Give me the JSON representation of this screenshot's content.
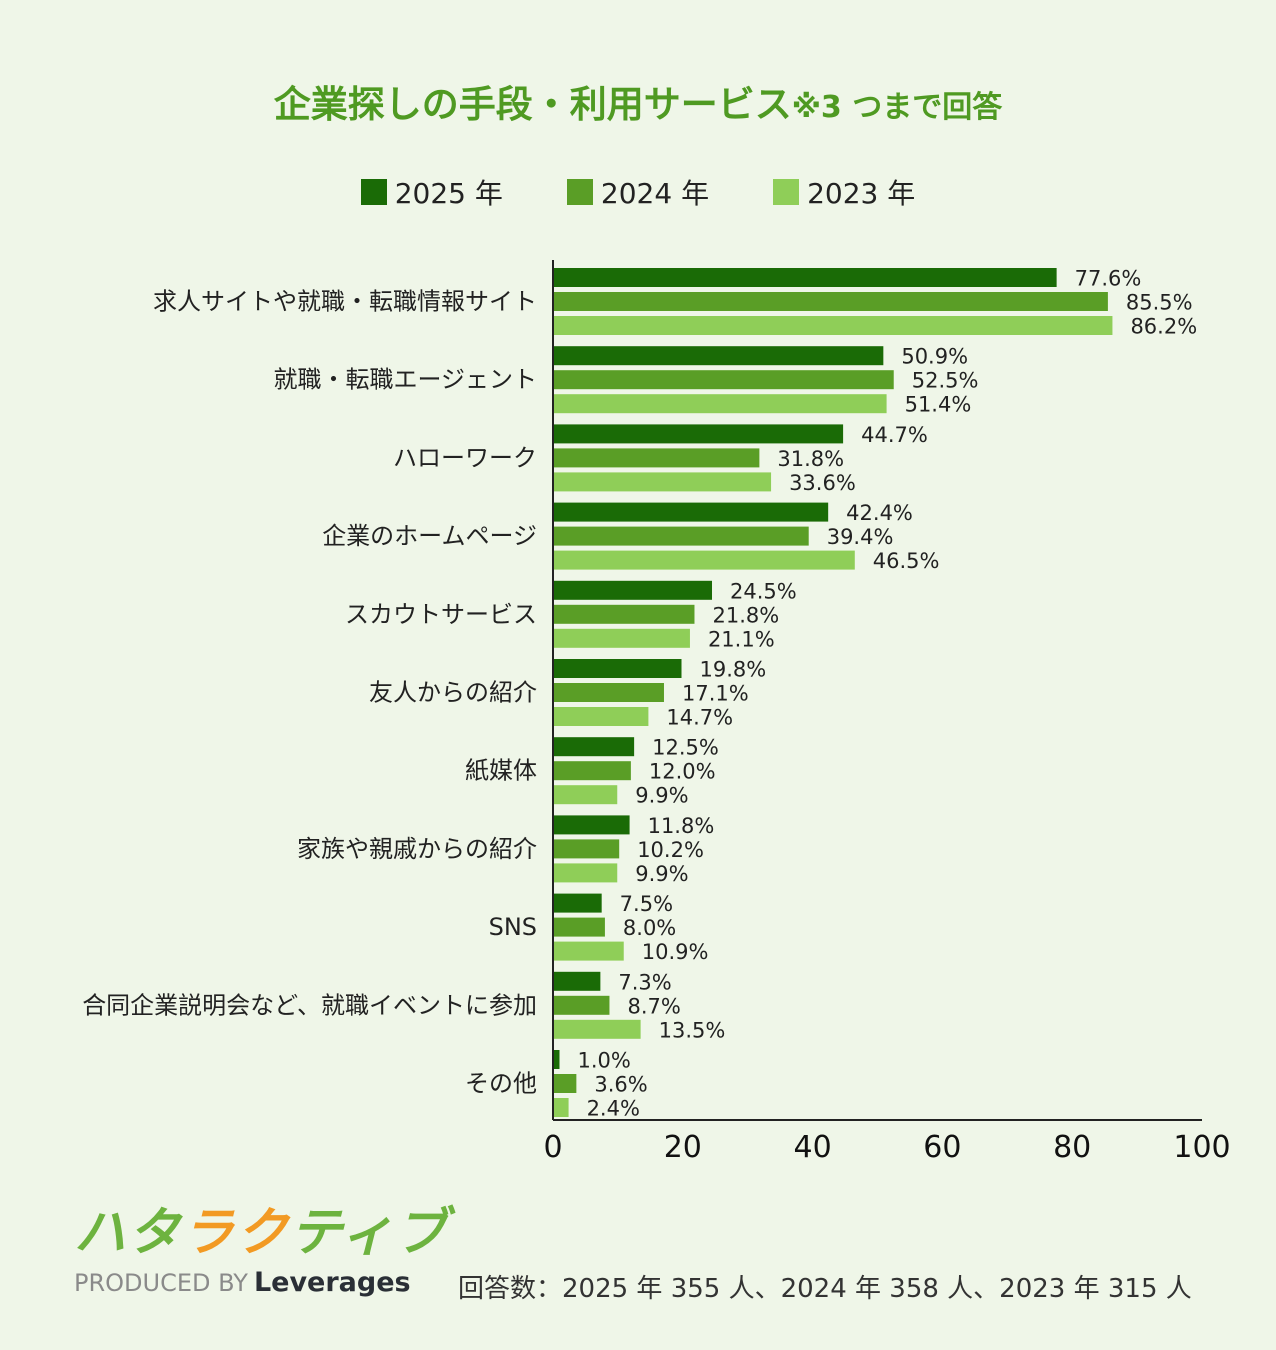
{
  "chart_data": {
    "type": "bar",
    "orientation": "horizontal",
    "title": "企業探しの手段・利用サービス",
    "title_note": "※3 つまで回答",
    "categories": [
      "求人サイトや就職・転職情報サイト",
      "就職・転職エージェント",
      "ハローワーク",
      "企業のホームページ",
      "スカウトサービス",
      "友人からの紹介",
      "紙媒体",
      "家族や親戚からの紹介",
      "SNS",
      "合同企業説明会など、就職イベントに参加",
      "その他"
    ],
    "series": [
      {
        "name": "2025 年",
        "color": "#1a6b06",
        "values": [
          77.6,
          50.9,
          44.7,
          42.4,
          24.5,
          19.8,
          12.5,
          11.8,
          7.5,
          7.3,
          1.0
        ]
      },
      {
        "name": "2024 年",
        "color": "#5a9e26",
        "values": [
          85.5,
          52.5,
          31.8,
          39.4,
          21.8,
          17.1,
          12.0,
          10.2,
          8.0,
          8.7,
          3.6
        ]
      },
      {
        "name": "2023 年",
        "color": "#8fce58",
        "values": [
          86.2,
          51.4,
          33.6,
          46.5,
          21.1,
          14.7,
          9.9,
          9.9,
          10.9,
          13.5,
          2.4
        ]
      }
    ],
    "value_suffix": "%",
    "xlim": [
      0,
      100
    ],
    "xticks": [
      "0",
      "20",
      "40",
      "60",
      "80",
      "100"
    ],
    "grid": false,
    "legend_position": "top"
  },
  "logo": {
    "mark": "ハタラクティブ",
    "produced_by": "PRODUCED BY",
    "company": "Leverages"
  },
  "footnote": "回答数：2025 年 355 人、2024 年 358 人、2023 年 315 人"
}
